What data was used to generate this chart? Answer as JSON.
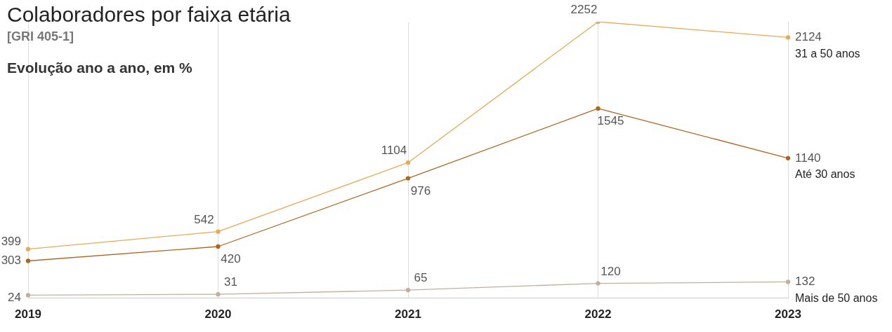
{
  "chart_data": {
    "type": "line",
    "title": "Colaboradores por faixa etária",
    "subtitle": "[GRI 405-1]",
    "annotations": [
      "Evolução ano a ano, em %"
    ],
    "categories": [
      "2019",
      "2020",
      "2021",
      "2022",
      "2023"
    ],
    "series": [
      {
        "name": "31 a 50 anos",
        "color": "#e8aa55",
        "values": [
          399,
          542,
          1104,
          2252,
          2124
        ]
      },
      {
        "name": "Até 30 anos",
        "color": "#b0651f",
        "values": [
          303,
          420,
          976,
          1545,
          1140
        ]
      },
      {
        "name": "Mais de 50 anos",
        "color": "#c2b09c",
        "values": [
          24,
          31,
          65,
          120,
          132
        ]
      }
    ],
    "tick_labels": "x",
    "data_labels": true,
    "grid": "x",
    "legend": false,
    "marker": "circle",
    "line_style": "solid"
  }
}
